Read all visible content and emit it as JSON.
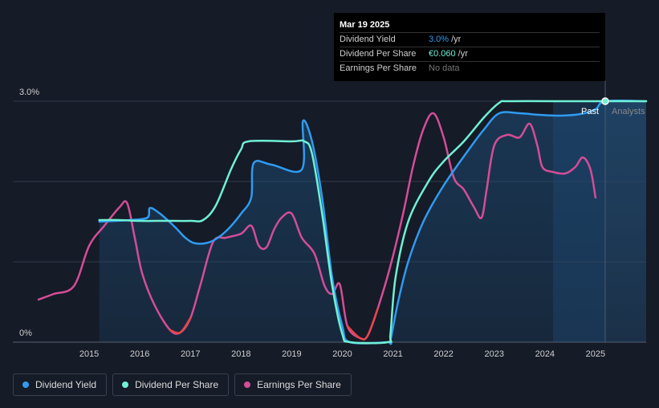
{
  "tooltip": {
    "date": "Mar 19 2025",
    "rows": [
      {
        "label": "Dividend Yield",
        "value": "3.0%",
        "unit": "/yr"
      },
      {
        "label": "Dividend Per Share",
        "value": "€0.060",
        "unit": "/yr"
      },
      {
        "label": "Earnings Per Share",
        "value": "No data",
        "unit": ""
      }
    ]
  },
  "labels": {
    "past": "Past",
    "analysts": "Analysts"
  },
  "legend": [
    {
      "label": "Dividend Yield",
      "color": "#2f9bf0"
    },
    {
      "label": "Dividend Per Share",
      "color": "#6ff0d5"
    },
    {
      "label": "Earnings Per Share",
      "color": "#d44d97"
    }
  ],
  "chart_data": {
    "type": "line",
    "ylim": [
      0,
      3.0
    ],
    "y_ticks": [
      "0%",
      "3.0%"
    ],
    "xlim": [
      2014.0,
      2026.0
    ],
    "x_ticks": [
      "2015",
      "2016",
      "2017",
      "2018",
      "2019",
      "2020",
      "2021",
      "2022",
      "2023",
      "2024",
      "2025"
    ],
    "grid": true,
    "legend_position": "bottom-left",
    "series": [
      {
        "name": "Dividend Yield",
        "color": "#2f9bf0",
        "points": [
          [
            2015.2,
            1.5
          ],
          [
            2015.8,
            1.52
          ],
          [
            2016.15,
            1.55
          ],
          [
            2016.2,
            1.67
          ],
          [
            2016.4,
            1.6
          ],
          [
            2016.7,
            1.43
          ],
          [
            2016.9,
            1.3
          ],
          [
            2017.1,
            1.23
          ],
          [
            2017.4,
            1.25
          ],
          [
            2017.7,
            1.38
          ],
          [
            2018.0,
            1.6
          ],
          [
            2018.2,
            1.8
          ],
          [
            2018.25,
            2.23
          ],
          [
            2018.6,
            2.21
          ],
          [
            2019.2,
            2.15
          ],
          [
            2019.22,
            2.75
          ],
          [
            2019.4,
            2.5
          ],
          [
            2019.6,
            1.8
          ],
          [
            2019.8,
            0.8
          ],
          [
            2020.0,
            0.2
          ],
          [
            2020.15,
            0.0
          ],
          [
            2020.9,
            0.0
          ],
          [
            2020.95,
            0.02
          ],
          [
            2021.1,
            0.5
          ],
          [
            2021.3,
            1.0
          ],
          [
            2021.6,
            1.5
          ],
          [
            2022.0,
            1.95
          ],
          [
            2022.5,
            2.4
          ],
          [
            2022.8,
            2.65
          ],
          [
            2023.1,
            2.85
          ],
          [
            2023.5,
            2.85
          ],
          [
            2023.9,
            2.83
          ],
          [
            2024.3,
            2.82
          ],
          [
            2024.7,
            2.84
          ],
          [
            2025.0,
            2.9
          ],
          [
            2025.2,
            3.0
          ],
          [
            2026.0,
            3.0
          ]
        ]
      },
      {
        "name": "Dividend Per Share",
        "color": "#6ff0d5",
        "points": [
          [
            2015.2,
            1.52
          ],
          [
            2015.6,
            1.52
          ],
          [
            2016.0,
            1.51
          ],
          [
            2016.5,
            1.51
          ],
          [
            2017.0,
            1.51
          ],
          [
            2017.25,
            1.52
          ],
          [
            2017.5,
            1.7
          ],
          [
            2017.8,
            2.15
          ],
          [
            2018.0,
            2.4
          ],
          [
            2018.15,
            2.5
          ],
          [
            2019.0,
            2.5
          ],
          [
            2019.25,
            2.5
          ],
          [
            2019.4,
            2.35
          ],
          [
            2019.6,
            1.6
          ],
          [
            2019.8,
            0.7
          ],
          [
            2020.0,
            0.1
          ],
          [
            2020.15,
            0.0
          ],
          [
            2020.9,
            0.0
          ],
          [
            2020.95,
            0.1
          ],
          [
            2021.05,
            0.8
          ],
          [
            2021.3,
            1.5
          ],
          [
            2021.7,
            2.0
          ],
          [
            2022.0,
            2.25
          ],
          [
            2022.4,
            2.5
          ],
          [
            2022.8,
            2.8
          ],
          [
            2023.1,
            2.98
          ],
          [
            2023.3,
            3.0
          ],
          [
            2024.5,
            3.0
          ],
          [
            2025.0,
            3.0
          ],
          [
            2026.0,
            3.0
          ]
        ]
      },
      {
        "name": "Earnings Per Share",
        "color": "#d44d97",
        "points": [
          [
            2014.0,
            0.53
          ],
          [
            2014.3,
            0.6
          ],
          [
            2014.7,
            0.7
          ],
          [
            2015.0,
            1.2
          ],
          [
            2015.3,
            1.45
          ],
          [
            2015.6,
            1.68
          ],
          [
            2015.75,
            1.73
          ],
          [
            2015.9,
            1.3
          ],
          [
            2016.05,
            0.85
          ],
          [
            2016.3,
            0.45
          ],
          [
            2016.6,
            0.15
          ],
          [
            2016.8,
            0.12
          ],
          [
            2017.0,
            0.3
          ],
          [
            2017.2,
            0.72
          ],
          [
            2017.45,
            1.25
          ],
          [
            2017.7,
            1.3
          ],
          [
            2018.0,
            1.35
          ],
          [
            2018.2,
            1.45
          ],
          [
            2018.35,
            1.2
          ],
          [
            2018.5,
            1.18
          ],
          [
            2018.65,
            1.4
          ],
          [
            2018.8,
            1.55
          ],
          [
            2019.0,
            1.6
          ],
          [
            2019.2,
            1.3
          ],
          [
            2019.45,
            1.1
          ],
          [
            2019.65,
            0.7
          ],
          [
            2019.8,
            0.6
          ],
          [
            2019.95,
            0.72
          ],
          [
            2020.1,
            0.2
          ],
          [
            2020.35,
            0.05
          ],
          [
            2020.5,
            0.08
          ],
          [
            2020.7,
            0.42
          ],
          [
            2020.95,
            0.95
          ],
          [
            2021.2,
            1.6
          ],
          [
            2021.4,
            2.2
          ],
          [
            2021.6,
            2.65
          ],
          [
            2021.8,
            2.85
          ],
          [
            2022.0,
            2.55
          ],
          [
            2022.2,
            2.05
          ],
          [
            2022.4,
            1.9
          ],
          [
            2022.6,
            1.68
          ],
          [
            2022.75,
            1.55
          ],
          [
            2022.85,
            1.9
          ],
          [
            2023.0,
            2.45
          ],
          [
            2023.25,
            2.58
          ],
          [
            2023.5,
            2.55
          ],
          [
            2023.7,
            2.72
          ],
          [
            2023.85,
            2.45
          ],
          [
            2023.95,
            2.18
          ],
          [
            2024.15,
            2.12
          ],
          [
            2024.4,
            2.1
          ],
          [
            2024.6,
            2.18
          ],
          [
            2024.75,
            2.3
          ],
          [
            2024.9,
            2.15
          ],
          [
            2025.0,
            1.8
          ]
        ]
      }
    ]
  }
}
